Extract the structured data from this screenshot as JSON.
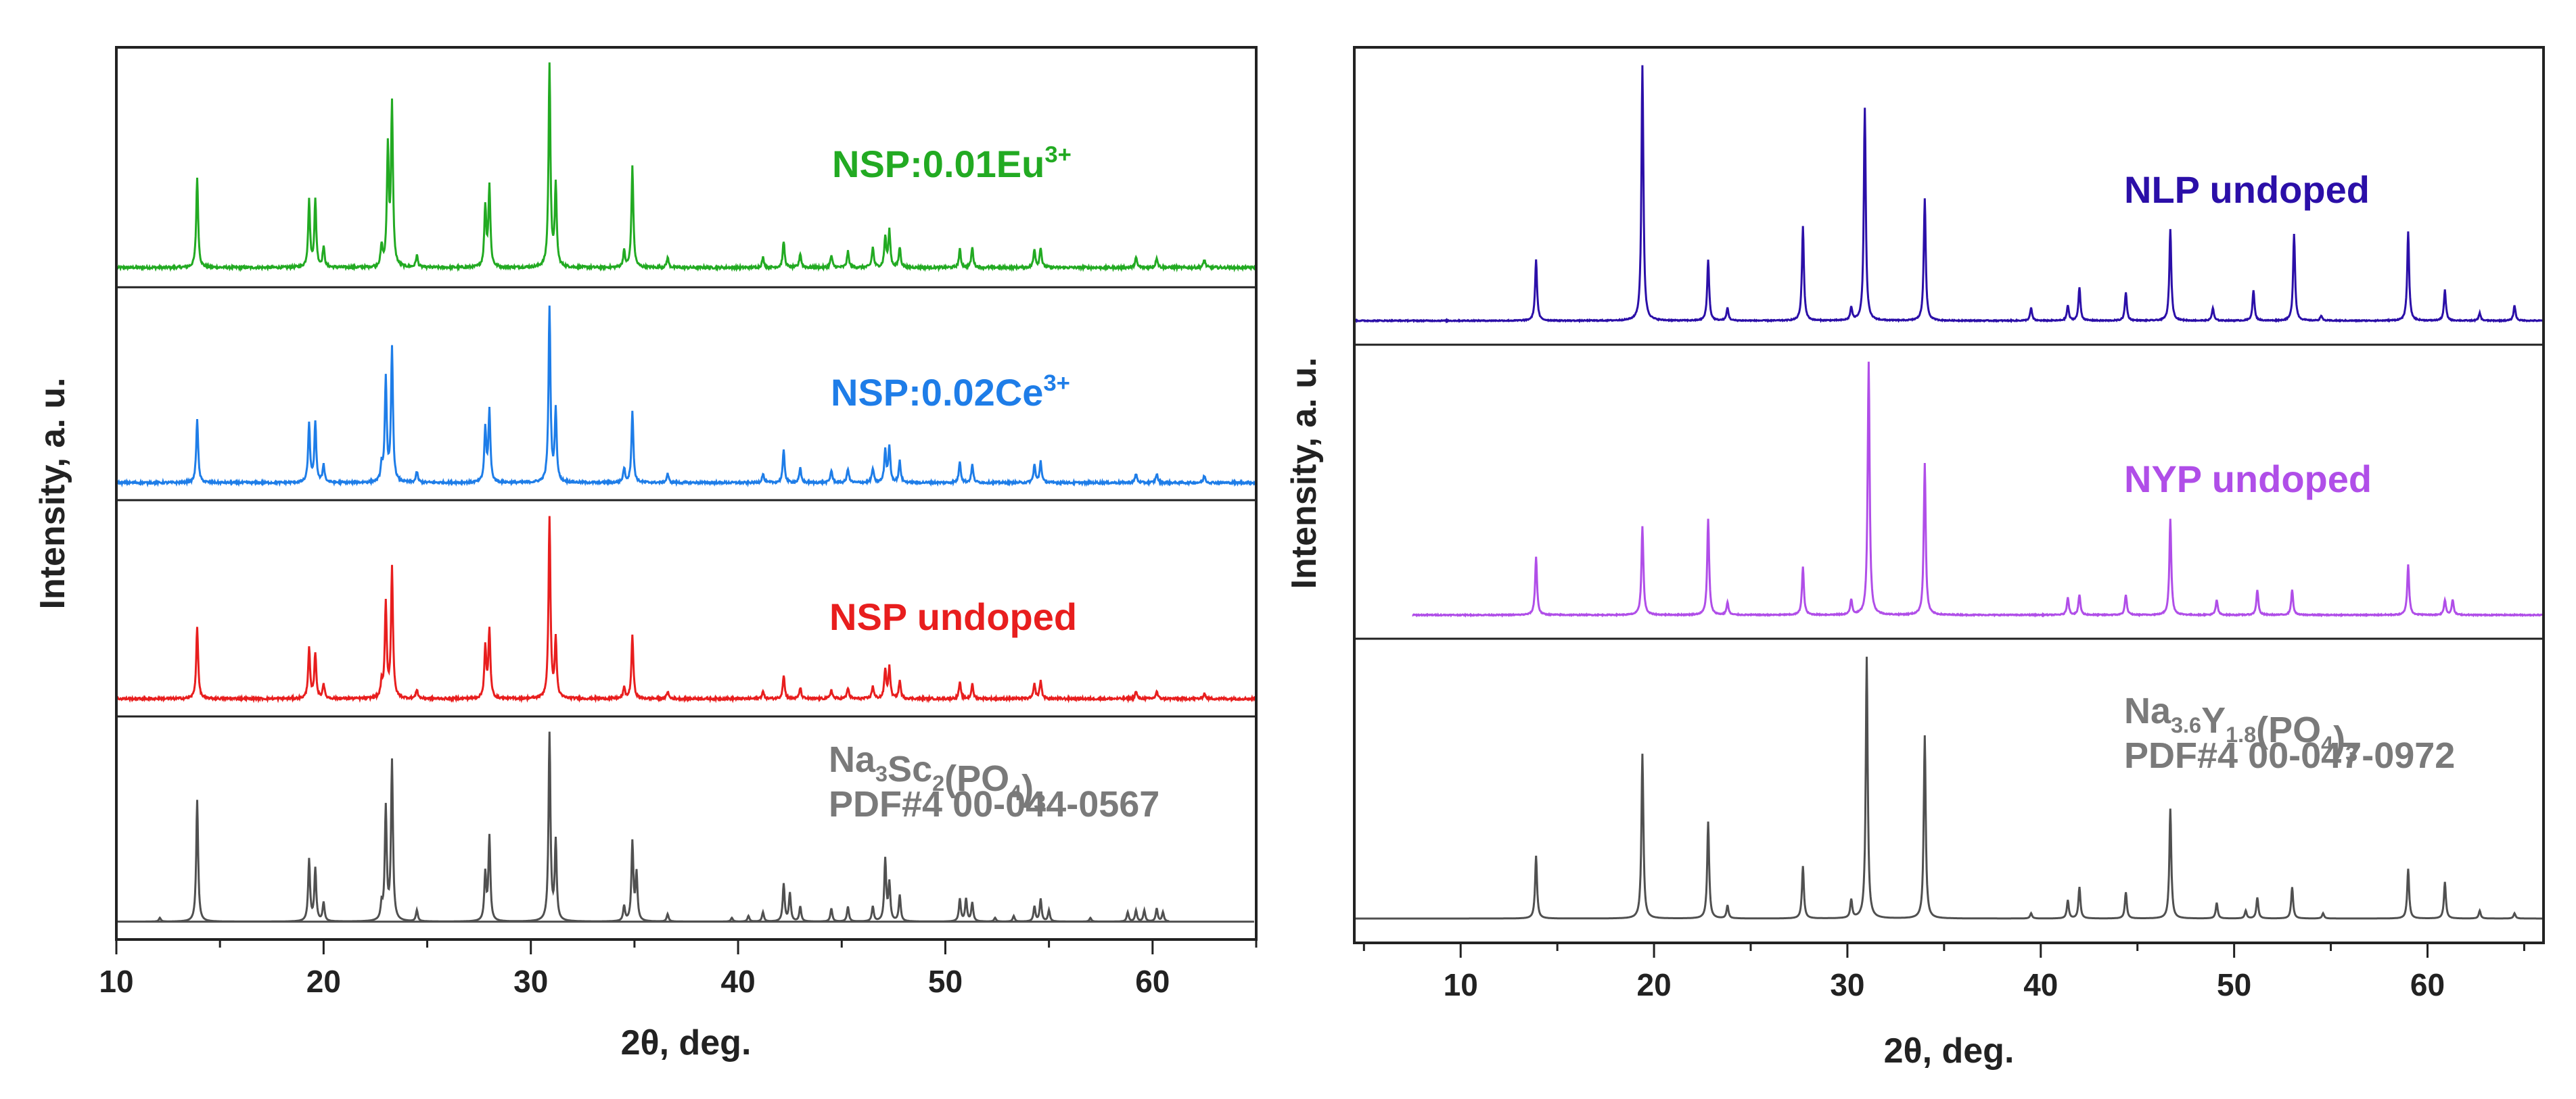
{
  "chart_data": [
    {
      "type": "line",
      "title": "",
      "xlabel": "2θ, deg.",
      "ylabel": "Intensity, a. u.",
      "xlim": [
        10,
        65
      ],
      "xticks": [
        "10",
        "20",
        "30",
        "40",
        "50",
        "60"
      ],
      "series": [
        {
          "name": "NSP:0.01Eu",
          "label_base": "NSP:0.01Eu",
          "label_sup": "3+",
          "color": "#22aa22",
          "peaks": [
            [
              13.9,
              0.45
            ],
            [
              19.3,
              0.33
            ],
            [
              19.6,
              0.33
            ],
            [
              20.0,
              0.1
            ],
            [
              22.8,
              0.1
            ],
            [
              23.1,
              0.58
            ],
            [
              23.3,
              0.8
            ],
            [
              24.5,
              0.06
            ],
            [
              27.8,
              0.3
            ],
            [
              28.0,
              0.4
            ],
            [
              30.9,
              1.0
            ],
            [
              31.2,
              0.4
            ],
            [
              34.5,
              0.08
            ],
            [
              34.9,
              0.5
            ],
            [
              36.6,
              0.05
            ],
            [
              41.2,
              0.05
            ],
            [
              42.2,
              0.13
            ],
            [
              43.0,
              0.07
            ],
            [
              44.5,
              0.06
            ],
            [
              45.3,
              0.08
            ],
            [
              46.5,
              0.1
            ],
            [
              47.1,
              0.15
            ],
            [
              47.3,
              0.18
            ],
            [
              47.8,
              0.1
            ],
            [
              50.7,
              0.09
            ],
            [
              51.3,
              0.1
            ],
            [
              54.3,
              0.09
            ],
            [
              54.6,
              0.1
            ],
            [
              59.2,
              0.05
            ],
            [
              60.2,
              0.05
            ],
            [
              62.5,
              0.04
            ]
          ],
          "noise": 0.012
        },
        {
          "name": "NSP:0.02Ce",
          "label_base": "NSP:0.02Ce",
          "label_sup": "3+",
          "color": "#1e7de8",
          "peaks": [
            [
              13.9,
              0.36
            ],
            [
              19.3,
              0.33
            ],
            [
              19.6,
              0.33
            ],
            [
              20.0,
              0.1
            ],
            [
              22.8,
              0.09
            ],
            [
              23.0,
              0.58
            ],
            [
              23.3,
              0.75
            ],
            [
              24.5,
              0.06
            ],
            [
              27.8,
              0.3
            ],
            [
              28.0,
              0.4
            ],
            [
              30.9,
              0.98
            ],
            [
              31.2,
              0.4
            ],
            [
              34.5,
              0.08
            ],
            [
              34.9,
              0.4
            ],
            [
              36.6,
              0.05
            ],
            [
              41.2,
              0.05
            ],
            [
              42.2,
              0.18
            ],
            [
              43.0,
              0.08
            ],
            [
              44.5,
              0.07
            ],
            [
              45.3,
              0.08
            ],
            [
              46.5,
              0.08
            ],
            [
              47.1,
              0.18
            ],
            [
              47.3,
              0.2
            ],
            [
              47.8,
              0.12
            ],
            [
              50.7,
              0.12
            ],
            [
              51.3,
              0.1
            ],
            [
              54.3,
              0.1
            ],
            [
              54.6,
              0.12
            ],
            [
              59.2,
              0.05
            ],
            [
              60.2,
              0.05
            ],
            [
              62.5,
              0.04
            ]
          ],
          "noise": 0.012
        },
        {
          "name": "NSP undoped",
          "label_base": "NSP undoped",
          "label_sup": "",
          "color": "#e81e1e",
          "peaks": [
            [
              13.9,
              0.4
            ],
            [
              19.3,
              0.28
            ],
            [
              19.6,
              0.25
            ],
            [
              20.0,
              0.08
            ],
            [
              22.8,
              0.08
            ],
            [
              23.0,
              0.52
            ],
            [
              23.3,
              0.72
            ],
            [
              24.5,
              0.05
            ],
            [
              27.8,
              0.28
            ],
            [
              28.0,
              0.38
            ],
            [
              30.9,
              1.0
            ],
            [
              31.2,
              0.32
            ],
            [
              34.5,
              0.06
            ],
            [
              34.9,
              0.35
            ],
            [
              36.6,
              0.04
            ],
            [
              41.2,
              0.04
            ],
            [
              42.2,
              0.13
            ],
            [
              43.0,
              0.06
            ],
            [
              44.5,
              0.05
            ],
            [
              45.3,
              0.06
            ],
            [
              46.5,
              0.07
            ],
            [
              47.1,
              0.16
            ],
            [
              47.3,
              0.17
            ],
            [
              47.8,
              0.1
            ],
            [
              50.7,
              0.09
            ],
            [
              51.3,
              0.08
            ],
            [
              54.3,
              0.08
            ],
            [
              54.6,
              0.1
            ],
            [
              59.2,
              0.04
            ],
            [
              60.2,
              0.04
            ],
            [
              62.5,
              0.03
            ]
          ],
          "noise": 0.012
        },
        {
          "name": "Na3Sc2(PO4)3 PDF#4 00-044-0567",
          "label_line1": "Na3Sc2(PO4)3",
          "label_line2": "PDF#4 00-044-0567",
          "color": "#505050",
          "reference": true,
          "peaks": [
            [
              12.1,
              0.02
            ],
            [
              13.9,
              0.65
            ],
            [
              19.3,
              0.33
            ],
            [
              19.6,
              0.28
            ],
            [
              20.0,
              0.1
            ],
            [
              22.8,
              0.08
            ],
            [
              23.0,
              0.6
            ],
            [
              23.3,
              0.85
            ],
            [
              24.5,
              0.06
            ],
            [
              27.8,
              0.25
            ],
            [
              28.0,
              0.45
            ],
            [
              30.9,
              1.0
            ],
            [
              31.2,
              0.42
            ],
            [
              34.5,
              0.08
            ],
            [
              34.9,
              0.42
            ],
            [
              35.1,
              0.25
            ],
            [
              36.6,
              0.04
            ],
            [
              39.7,
              0.02
            ],
            [
              40.5,
              0.03
            ],
            [
              41.2,
              0.05
            ],
            [
              42.2,
              0.2
            ],
            [
              42.5,
              0.15
            ],
            [
              43.0,
              0.08
            ],
            [
              44.5,
              0.07
            ],
            [
              45.3,
              0.08
            ],
            [
              46.5,
              0.08
            ],
            [
              47.1,
              0.33
            ],
            [
              47.3,
              0.2
            ],
            [
              47.8,
              0.14
            ],
            [
              50.7,
              0.12
            ],
            [
              51.0,
              0.12
            ],
            [
              51.3,
              0.1
            ],
            [
              52.4,
              0.02
            ],
            [
              53.3,
              0.03
            ],
            [
              54.3,
              0.08
            ],
            [
              54.6,
              0.12
            ],
            [
              55.0,
              0.06
            ],
            [
              57.0,
              0.02
            ],
            [
              58.8,
              0.05
            ],
            [
              59.2,
              0.06
            ],
            [
              59.6,
              0.06
            ],
            [
              60.2,
              0.07
            ],
            [
              60.5,
              0.05
            ]
          ],
          "noise": 0
        }
      ]
    },
    {
      "type": "line",
      "title": "",
      "xlabel": "2θ, deg.",
      "ylabel": "Intensity, a. u.",
      "xlim": [
        4.5,
        66
      ],
      "xticks": [
        "10",
        "20",
        "30",
        "40",
        "50",
        "60"
      ],
      "series": [
        {
          "name": "NLP undoped",
          "label_base": "NLP undoped",
          "label_sup": "",
          "color": "#2b0fa8",
          "peaks": [
            [
              13.9,
              0.24
            ],
            [
              19.4,
              1.0
            ],
            [
              22.8,
              0.24
            ],
            [
              23.8,
              0.05
            ],
            [
              27.7,
              0.37
            ],
            [
              30.2,
              0.05
            ],
            [
              30.9,
              0.83
            ],
            [
              34.0,
              0.48
            ],
            [
              39.5,
              0.05
            ],
            [
              41.4,
              0.06
            ],
            [
              42.0,
              0.13
            ],
            [
              44.4,
              0.11
            ],
            [
              46.7,
              0.36
            ],
            [
              48.9,
              0.05
            ],
            [
              51.0,
              0.12
            ],
            [
              53.1,
              0.34
            ],
            [
              54.5,
              0.02
            ],
            [
              59.0,
              0.35
            ],
            [
              60.9,
              0.12
            ],
            [
              62.7,
              0.03
            ],
            [
              64.5,
              0.06
            ]
          ],
          "noise": 0.004
        },
        {
          "name": "NYP undoped",
          "label_base": "NYP undoped",
          "label_sup": "",
          "color": "#b04ee8",
          "peaks": [
            [
              13.9,
              0.23
            ],
            [
              19.4,
              0.35
            ],
            [
              22.8,
              0.38
            ],
            [
              23.8,
              0.05
            ],
            [
              27.7,
              0.19
            ],
            [
              30.2,
              0.06
            ],
            [
              31.1,
              1.0
            ],
            [
              34.0,
              0.6
            ],
            [
              41.4,
              0.07
            ],
            [
              42.0,
              0.08
            ],
            [
              44.4,
              0.08
            ],
            [
              46.7,
              0.38
            ],
            [
              49.1,
              0.06
            ],
            [
              51.2,
              0.1
            ],
            [
              53.0,
              0.1
            ],
            [
              59.0,
              0.2
            ],
            [
              60.9,
              0.06
            ],
            [
              61.3,
              0.06
            ]
          ],
          "noise": 0.004
        },
        {
          "name": "Na3.6Y1.8(PO4)3 PDF#4 00-047-0972",
          "label_line1": "Na3.6Y1.8(PO4)3",
          "label_line2": "PDF#4 00-047-0972",
          "color": "#505050",
          "reference": true,
          "peaks": [
            [
              13.9,
              0.24
            ],
            [
              19.4,
              0.63
            ],
            [
              22.8,
              0.37
            ],
            [
              23.8,
              0.05
            ],
            [
              27.7,
              0.2
            ],
            [
              30.2,
              0.07
            ],
            [
              31.0,
              1.0
            ],
            [
              34.0,
              0.7
            ],
            [
              39.5,
              0.02
            ],
            [
              41.4,
              0.07
            ],
            [
              42.0,
              0.12
            ],
            [
              44.4,
              0.1
            ],
            [
              46.7,
              0.42
            ],
            [
              49.1,
              0.06
            ],
            [
              50.6,
              0.03
            ],
            [
              51.2,
              0.08
            ],
            [
              53.0,
              0.12
            ],
            [
              54.6,
              0.02
            ],
            [
              59.0,
              0.19
            ],
            [
              60.9,
              0.14
            ],
            [
              62.7,
              0.03
            ],
            [
              64.5,
              0.02
            ]
          ],
          "noise": 0
        }
      ]
    }
  ]
}
